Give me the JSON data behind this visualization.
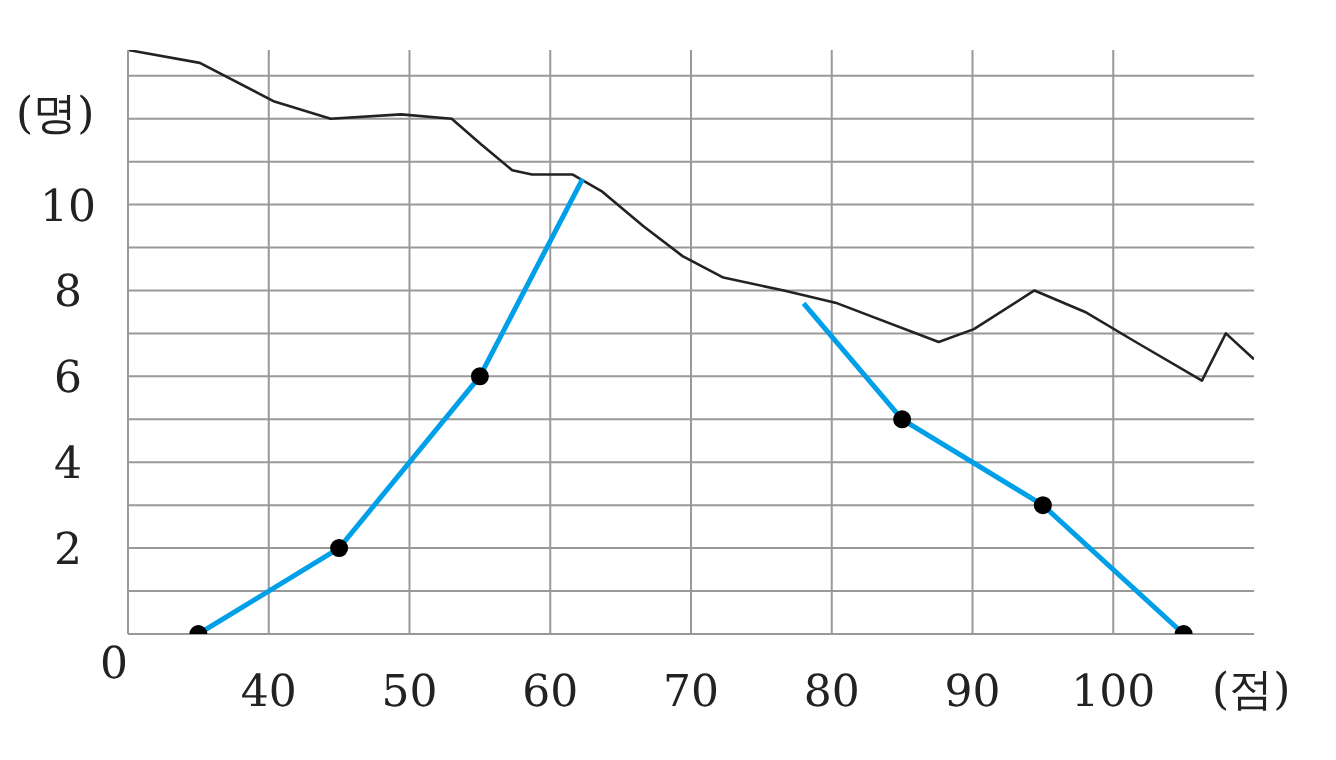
{
  "chart_data": {
    "type": "line",
    "xlabel": "(점)",
    "ylabel": "(명)",
    "annotations": [
      "0"
    ],
    "xlim": [
      30,
      110
    ],
    "xticks": [
      40,
      50,
      60,
      70,
      80,
      90,
      100
    ],
    "ylim": [
      0,
      13.6
    ],
    "yticks": [
      {
        "value": 0,
        "label": null
      },
      {
        "value": 1,
        "label": null
      },
      2,
      {
        "value": 3,
        "label": null
      },
      4,
      {
        "value": 5,
        "label": null
      },
      6,
      {
        "value": 7,
        "label": null
      },
      8,
      {
        "value": 9,
        "label": null
      },
      10,
      {
        "value": 11,
        "label": null
      },
      {
        "value": 12,
        "label": null
      },
      {
        "value": 13,
        "label": null
      }
    ],
    "grid": true,
    "series": [
      {
        "type": "line",
        "color": "#222222",
        "marker": "none",
        "x": [
          30,
          35.1,
          40.4,
          44.4,
          49.4,
          53,
          55.1,
          57.3,
          58.7,
          61.6,
          63.7,
          66.6,
          69.4,
          72.3,
          76.6,
          80.4,
          87.6,
          90.1,
          94.4,
          98,
          101.6,
          106.3,
          108,
          110
        ],
        "values": [
          13.6,
          13.3,
          12.4,
          12,
          12.1,
          12,
          11.4,
          10.8,
          10.7,
          10.7,
          10.3,
          9.5,
          8.8,
          8.3,
          8,
          7.7,
          6.8,
          7.1,
          8,
          7.5,
          6.8,
          5.9,
          7,
          6.4
        ]
      },
      {
        "color": "#00a0e9",
        "marker": "none",
        "x": [
          35,
          45,
          55,
          62.3,
          70,
          78,
          85,
          95,
          105
        ],
        "values": [
          0,
          2,
          6,
          10.6,
          null,
          7.7,
          5,
          3,
          0
        ]
      },
      {
        "type": "scatter",
        "color": "#000000",
        "marker": "circle",
        "x": [
          35,
          45,
          55,
          85,
          95,
          105
        ],
        "values": [
          0,
          2,
          6,
          5,
          3,
          0
        ]
      }
    ]
  }
}
